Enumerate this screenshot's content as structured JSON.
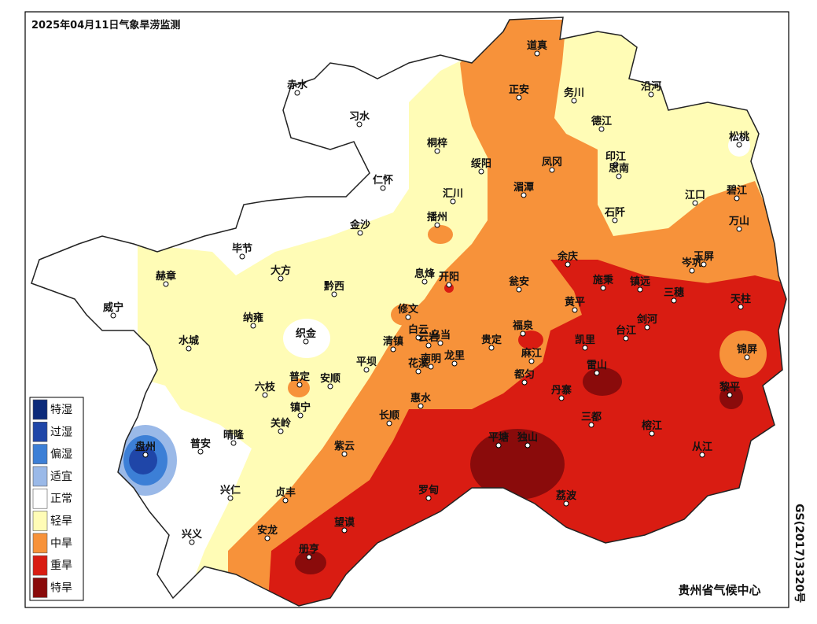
{
  "title": "2025年04月11日气象旱涝监测",
  "legend": [
    {
      "label": "特湿",
      "color": "#0c2a7a"
    },
    {
      "label": "过湿",
      "color": "#1f46a8"
    },
    {
      "label": "偏湿",
      "color": "#3c7fd6"
    },
    {
      "label": "适宜",
      "color": "#9ab9e8"
    },
    {
      "label": "正常",
      "color": "#ffffff"
    },
    {
      "label": "轻旱",
      "color": "#fffcb6"
    },
    {
      "label": "中旱",
      "color": "#f7923a"
    },
    {
      "label": "重旱",
      "color": "#d91c12"
    },
    {
      "label": "特旱",
      "color": "#8a0b0b"
    }
  ],
  "cities": [
    "道真",
    "正安",
    "务川",
    "沿河",
    "赤水",
    "习水",
    "德江",
    "松桃",
    "桐梓",
    "绥阳",
    "凤冈",
    "印江",
    "思南",
    "仁怀",
    "湄潭",
    "汇川",
    "江口",
    "碧江",
    "石阡",
    "播州",
    "金沙",
    "万山",
    "毕节",
    "赫章",
    "大方",
    "岑巩",
    "玉屏",
    "余庆",
    "息烽",
    "开阳",
    "黔西",
    "瓮安",
    "施秉",
    "镇远",
    "三穗",
    "天柱",
    "威宁",
    "纳雍",
    "修文",
    "黄平",
    "剑河",
    "台江",
    "织金",
    "白云",
    "云岩",
    "乌当",
    "福泉",
    "贵定",
    "凯里",
    "清镇",
    "水城",
    "麻江",
    "雷山",
    "锦屏",
    "平坝",
    "花溪",
    "南明",
    "龙里",
    "安顺",
    "普定",
    "都匀",
    "六枝",
    "黎平",
    "丹寨",
    "惠水",
    "镇宁",
    "三都",
    "关岭",
    "长顺",
    "晴隆",
    "普安",
    "盘州",
    "榕江",
    "平塘",
    "独山",
    "紫云",
    "从江",
    "兴仁",
    "贞丰",
    "罗甸",
    "荔波",
    "望谟",
    "安龙",
    "兴义",
    "册亨"
  ],
  "footer": "贵州省气候中心",
  "map_number": "GS(2017)3320号"
}
